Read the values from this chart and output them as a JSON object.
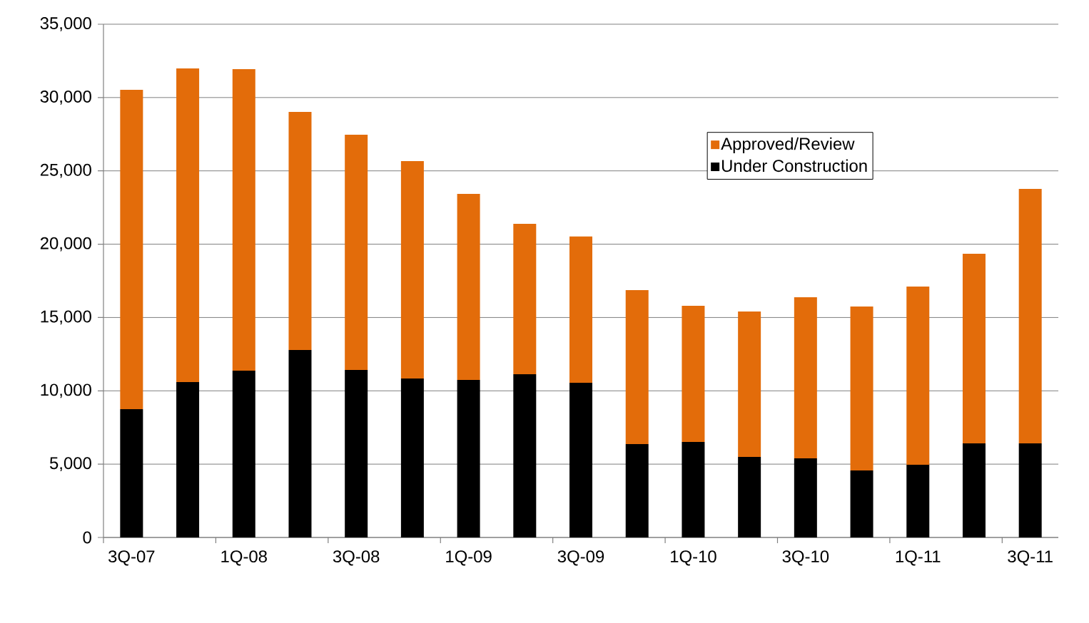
{
  "chart_data": {
    "type": "bar",
    "stacked": true,
    "categories": [
      "3Q-07",
      null,
      "1Q-08",
      null,
      "3Q-08",
      null,
      "1Q-09",
      null,
      "3Q-09",
      null,
      "1Q-10",
      null,
      "3Q-10",
      null,
      "1Q-11",
      null,
      "3Q-11"
    ],
    "series": [
      {
        "name": "Under Construction",
        "color": "#000000",
        "values": [
          8750,
          10600,
          11380,
          12790,
          11420,
          10840,
          10740,
          11130,
          10550,
          6370,
          6510,
          5490,
          5400,
          4570,
          4960,
          6420,
          6420
        ]
      },
      {
        "name": "Approved/Review",
        "color": "#e36c0a",
        "values": [
          21780,
          21390,
          20560,
          16230,
          16050,
          14830,
          12690,
          10260,
          9970,
          10500,
          9290,
          9920,
          10980,
          11180,
          12150,
          12930,
          17350
        ]
      }
    ],
    "ylim": [
      0,
      35000
    ],
    "yticks": [
      {
        "value": 0,
        "label": "0"
      },
      {
        "value": 5000,
        "label": "5,000"
      },
      {
        "value": 10000,
        "label": "10,000"
      },
      {
        "value": 15000,
        "label": "15,000"
      },
      {
        "value": 20000,
        "label": "20,000"
      },
      {
        "value": 25000,
        "label": "25,000"
      },
      {
        "value": 30000,
        "label": "30,000"
      },
      {
        "value": 35000,
        "label": "35,000"
      }
    ],
    "grid": "y",
    "legend": "top right"
  }
}
